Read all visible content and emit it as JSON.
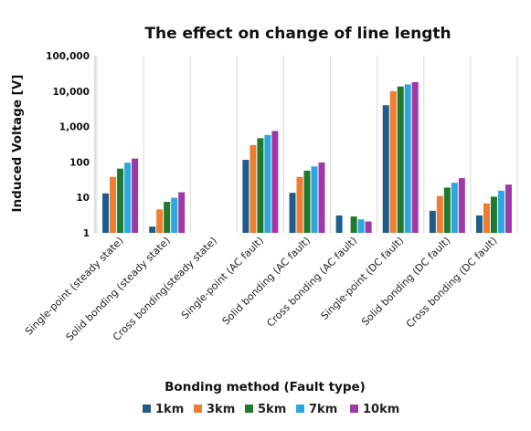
{
  "chart_data": {
    "type": "bar",
    "title": "The effect on change of line length",
    "xlabel": "Bonding method (Fault type)",
    "ylabel": "Induced Voltage [V]",
    "yscale": "log",
    "ylim": [
      1,
      100000
    ],
    "yticks": [
      {
        "value": 1,
        "label": "1"
      },
      {
        "value": 10,
        "label": "10"
      },
      {
        "value": 100,
        "label": "100"
      },
      {
        "value": 1000,
        "label": "1,000"
      },
      {
        "value": 10000,
        "label": "10,000"
      },
      {
        "value": 100000,
        "label": "100,000"
      }
    ],
    "categories": [
      "Single-point (steady state)",
      "Solid bonding (steady state)",
      "Cross bonding(steady state)",
      "Single-point (AC fault)",
      "Solid bonding (AC fault)",
      "Cross bonding (AC fault)",
      "Single-point (DC fault)",
      "Solid bonding (DC fault)",
      "Cross bonding (DC fault)"
    ],
    "series": [
      {
        "name": "1km",
        "color": "#1f5c8a",
        "values": [
          13,
          1.5,
          null,
          115,
          13.5,
          3.1,
          4000,
          4.2,
          3.1
        ]
      },
      {
        "name": "3km",
        "color": "#ed7d31",
        "values": [
          38,
          4.6,
          null,
          300,
          38,
          null,
          10000,
          11,
          6.8
        ]
      },
      {
        "name": "5km",
        "color": "#1e7a2e",
        "values": [
          65,
          7.5,
          null,
          470,
          57,
          2.9,
          13500,
          19,
          10.5
        ]
      },
      {
        "name": "7km",
        "color": "#2ea7de",
        "values": [
          95,
          9.8,
          null,
          580,
          75,
          2.4,
          15500,
          26,
          15.5
        ]
      },
      {
        "name": "10km",
        "color": "#a038a8",
        "values": [
          125,
          14,
          null,
          750,
          97,
          2.1,
          18000,
          35,
          23
        ]
      }
    ],
    "grid": true,
    "legend": "bottom"
  }
}
